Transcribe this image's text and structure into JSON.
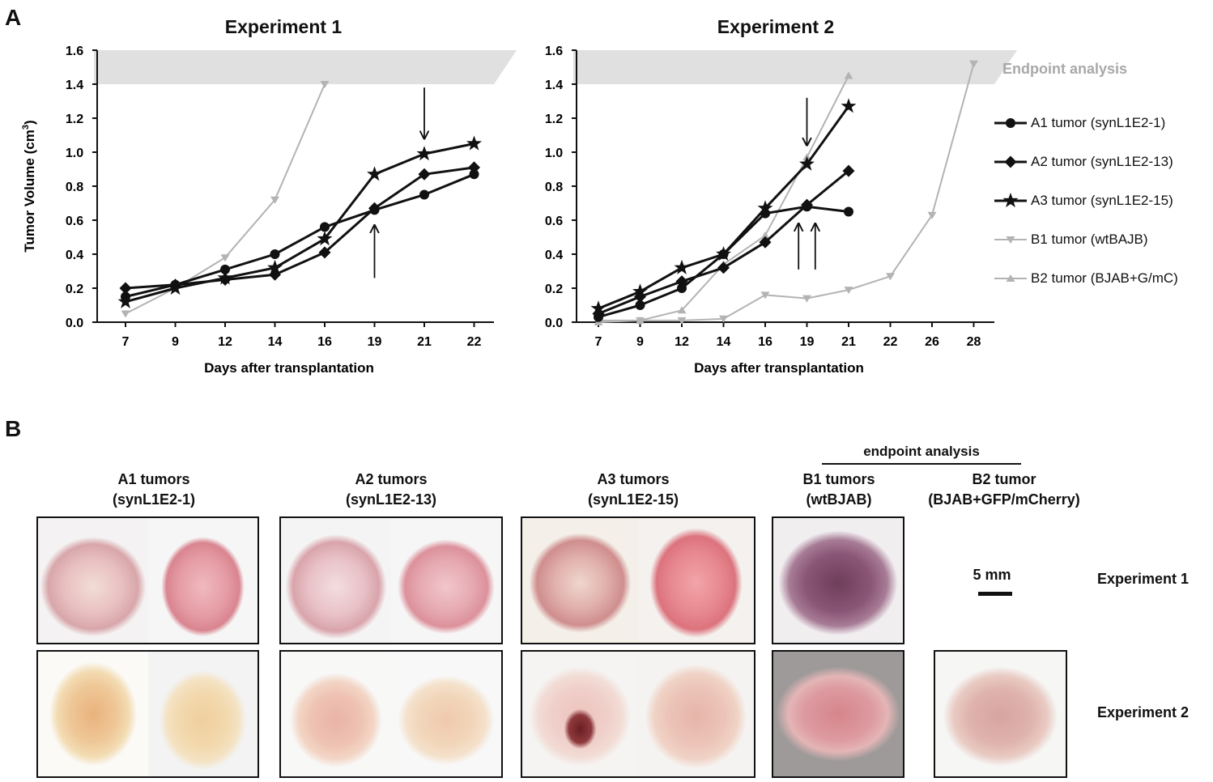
{
  "figure": {
    "panel_a_label": "A",
    "panel_b_label": "B"
  },
  "chart_data": [
    {
      "type": "line",
      "title": "Experiment 1",
      "xlabel": "Days after transplantation",
      "ylabel_main": "Tumor Volume (cm",
      "ylabel_sup": "3",
      "ylabel_close": ")",
      "categories": [
        "7",
        "9",
        "12",
        "14",
        "16",
        "19",
        "21",
        "22"
      ],
      "yticks": [
        "0.0",
        "0.2",
        "0.4",
        "0.6",
        "0.8",
        "1.0",
        "1.2",
        "1.4",
        "1.6"
      ],
      "ylim": [
        0,
        1.6
      ],
      "endpoint_band": [
        1.4,
        1.6
      ],
      "series": [
        {
          "name": "A1 tumor (synL1E2-1)",
          "marker": "circle",
          "color": "#111111",
          "values": [
            0.15,
            0.22,
            0.31,
            0.4,
            0.56,
            0.66,
            0.75,
            0.87
          ]
        },
        {
          "name": "A2 tumor (synL1E2-13)",
          "marker": "diamond",
          "color": "#111111",
          "values": [
            0.2,
            0.22,
            0.25,
            0.28,
            0.41,
            0.67,
            0.87,
            0.91
          ]
        },
        {
          "name": "A3 tumor (synL1E2-15)",
          "marker": "star",
          "color": "#111111",
          "values": [
            0.12,
            0.2,
            0.26,
            0.32,
            0.49,
            0.87,
            0.99,
            1.05
          ]
        },
        {
          "name": "B1 tumor (wtBAJB)",
          "marker": "tri-down",
          "color": "#b3b3b3",
          "values": [
            0.05,
            0.2,
            0.38,
            0.72,
            1.4,
            null,
            null,
            null
          ]
        }
      ],
      "arrows": [
        {
          "category": "21",
          "direction": "down",
          "from_y": 1.38,
          "to_y": 1.08
        },
        {
          "category": "19",
          "direction": "up",
          "from_y": 0.26,
          "to_y": 0.57
        }
      ]
    },
    {
      "type": "line",
      "title": "Experiment 2",
      "xlabel": "Days after transplantation",
      "categories": [
        "7",
        "9",
        "12",
        "14",
        "16",
        "19",
        "21",
        "22",
        "26",
        "28"
      ],
      "yticks": [
        "0.0",
        "0.2",
        "0.4",
        "0.6",
        "0.8",
        "1.0",
        "1.2",
        "1.4",
        "1.6"
      ],
      "ylim": [
        0,
        1.6
      ],
      "endpoint_band": [
        1.4,
        1.6
      ],
      "endpoint_label": "Endpoint analysis",
      "series": [
        {
          "name": "A1 tumor (synL1E2-1)",
          "marker": "circle",
          "color": "#111111",
          "values": [
            0.03,
            0.1,
            0.2,
            0.4,
            0.64,
            0.68,
            0.65,
            null,
            null,
            null
          ]
        },
        {
          "name": "A2 tumor (synL1E2-13)",
          "marker": "diamond",
          "color": "#111111",
          "values": [
            0.05,
            0.15,
            0.24,
            0.32,
            0.47,
            0.69,
            0.89,
            null,
            null,
            null
          ]
        },
        {
          "name": "A3 tumor (synL1E2-15)",
          "marker": "star",
          "color": "#111111",
          "values": [
            0.08,
            0.18,
            0.32,
            0.4,
            0.67,
            0.93,
            1.27,
            null,
            null,
            null
          ]
        },
        {
          "name": "B1 tumor (wtBAJB)",
          "marker": "tri-down",
          "color": "#b3b3b3",
          "values": [
            0.01,
            0.01,
            0.01,
            0.02,
            0.16,
            0.14,
            0.19,
            0.27,
            0.63,
            1.52
          ]
        },
        {
          "name": "B2 tumor (BJAB+G/mC)",
          "marker": "tri-up",
          "color": "#b3b3b3",
          "values": [
            0.0,
            0.01,
            0.07,
            0.34,
            0.51,
            0.97,
            1.45,
            null,
            null,
            null
          ]
        }
      ],
      "arrows": [
        {
          "category": "19",
          "direction": "down",
          "from_y": 1.32,
          "to_y": 1.04
        },
        {
          "category": "19",
          "offset": -0.2,
          "direction": "up",
          "from_y": 0.31,
          "to_y": 0.58
        },
        {
          "category": "19",
          "offset": 0.2,
          "direction": "up",
          "from_y": 0.31,
          "to_y": 0.58
        }
      ]
    }
  ],
  "legend": [
    {
      "label": "A1 tumor (synL1E2-1)",
      "marker": "circle",
      "color": "#111111"
    },
    {
      "label": "A2 tumor (synL1E2-13)",
      "marker": "diamond",
      "color": "#111111"
    },
    {
      "label": "A3 tumor (synL1E2-15)",
      "marker": "star",
      "color": "#111111"
    },
    {
      "label": "B1 tumor (wtBAJB)",
      "marker": "tri-down",
      "color": "#b3b3b3"
    },
    {
      "label": "B2 tumor (BJAB+G/mC)",
      "marker": "tri-up",
      "color": "#b3b3b3"
    }
  ],
  "panel_b": {
    "endpoint_header": "endpoint analysis",
    "captions": [
      {
        "line1": "A1 tumors",
        "line2": "(synL1E2-1)"
      },
      {
        "line1": "A2 tumors",
        "line2": "(synL1E2-13)"
      },
      {
        "line1": "A3 tumors",
        "line2": "(synL1E2-15)"
      },
      {
        "line1": "B1 tumors",
        "line2": "(wtBJAB)"
      },
      {
        "line1": "B2 tumor",
        "line2": "(BJAB+GFP/mCherry)"
      }
    ],
    "scale_bar_label": "5 mm",
    "row_labels": [
      "Experiment 1",
      "Experiment 2"
    ]
  }
}
